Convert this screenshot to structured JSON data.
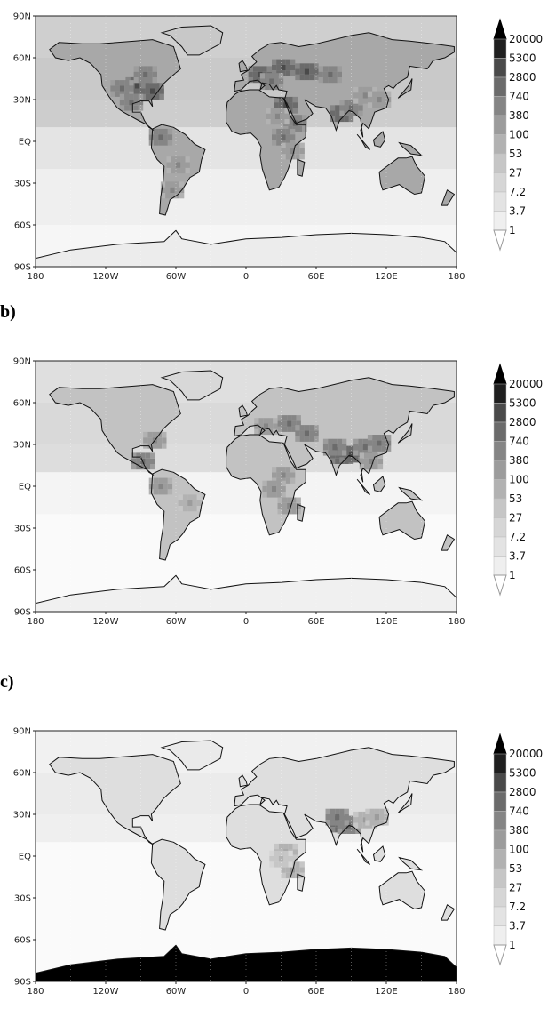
{
  "panels": [
    {
      "label": "",
      "hotspots": [
        {
          "lon": -95,
          "lat": 42,
          "level": 9
        },
        {
          "lon": -82,
          "lat": 38,
          "level": 9
        },
        {
          "lon": -108,
          "lat": 40,
          "level": 8
        },
        {
          "lon": -88,
          "lat": 50,
          "level": 8
        },
        {
          "lon": -100,
          "lat": 30,
          "level": 8
        },
        {
          "lon": 10,
          "lat": 50,
          "level": 9
        },
        {
          "lon": 30,
          "lat": 55,
          "level": 9
        },
        {
          "lon": 50,
          "lat": 52,
          "level": 9
        },
        {
          "lon": 70,
          "lat": 50,
          "level": 8
        },
        {
          "lon": 20,
          "lat": 45,
          "level": 8
        },
        {
          "lon": 32,
          "lat": 28,
          "level": 9
        },
        {
          "lon": 40,
          "lat": 15,
          "level": 8
        },
        {
          "lon": 30,
          "lat": 5,
          "level": 8
        },
        {
          "lon": 25,
          "lat": 20,
          "level": 7
        },
        {
          "lon": 80,
          "lat": 22,
          "level": 9
        },
        {
          "lon": 88,
          "lat": 26,
          "level": 8
        },
        {
          "lon": 100,
          "lat": 35,
          "level": 7
        },
        {
          "lon": 112,
          "lat": 32,
          "level": 7
        },
        {
          "lon": -75,
          "lat": 5,
          "level": 8
        },
        {
          "lon": -60,
          "lat": -15,
          "level": 7
        },
        {
          "lon": -65,
          "lat": -33,
          "level": 7
        },
        {
          "lon": 38,
          "lat": -5,
          "level": 7
        }
      ]
    },
    {
      "label": "b)",
      "hotspots": [
        {
          "lon": 80,
          "lat": 24,
          "level": 9
        },
        {
          "lon": 88,
          "lat": 25,
          "level": 9
        },
        {
          "lon": 74,
          "lat": 30,
          "level": 8
        },
        {
          "lon": 100,
          "lat": 30,
          "level": 8
        },
        {
          "lon": 112,
          "lat": 33,
          "level": 8
        },
        {
          "lon": 105,
          "lat": 20,
          "level": 7
        },
        {
          "lon": 35,
          "lat": 47,
          "level": 8
        },
        {
          "lon": 50,
          "lat": 40,
          "level": 8
        },
        {
          "lon": 15,
          "lat": 45,
          "level": 7
        },
        {
          "lon": 30,
          "lat": 10,
          "level": 7
        },
        {
          "lon": 22,
          "lat": 0,
          "level": 7
        },
        {
          "lon": 35,
          "lat": -12,
          "level": 7
        },
        {
          "lon": -90,
          "lat": 20,
          "level": 8
        },
        {
          "lon": -80,
          "lat": 35,
          "level": 7
        },
        {
          "lon": -75,
          "lat": 2,
          "level": 7
        },
        {
          "lon": -50,
          "lat": -10,
          "level": 6
        }
      ]
    },
    {
      "label": "c)",
      "hotspots": [
        {
          "lon": 80,
          "lat": 25,
          "level": 9
        },
        {
          "lon": 86,
          "lat": 24,
          "level": 8
        },
        {
          "lon": 76,
          "lat": 30,
          "level": 8
        },
        {
          "lon": 100,
          "lat": 28,
          "level": 6
        },
        {
          "lon": 110,
          "lat": 30,
          "level": 6
        },
        {
          "lon": 32,
          "lat": 5,
          "level": 6
        },
        {
          "lon": 38,
          "lat": -8,
          "level": 6
        },
        {
          "lon": 28,
          "lat": 0,
          "level": 5
        }
      ]
    }
  ],
  "axes": {
    "lat_labels": [
      "90N",
      "60N",
      "30N",
      "EQ",
      "30S",
      "60S",
      "90S"
    ],
    "lon_labels": [
      "180",
      "120W",
      "60W",
      "0",
      "60E",
      "120E",
      "180"
    ]
  },
  "colorbar": {
    "labels": [
      "20000",
      "5300",
      "2800",
      "740",
      "380",
      "100",
      "53",
      "27",
      "7.2",
      "3.7",
      "1"
    ],
    "colors": [
      "#1f1f1f",
      "#4a4a4a",
      "#6b6b6b",
      "#858585",
      "#9c9c9c",
      "#b2b2b2",
      "#c6c6c6",
      "#d6d6d6",
      "#e3e3e3",
      "#efefef",
      "#fafafa"
    ]
  },
  "colors": {
    "land": "#a9a9a9",
    "ocean": "#dcdcdc",
    "polar": "#f2f2f2",
    "coast": "#111111"
  }
}
